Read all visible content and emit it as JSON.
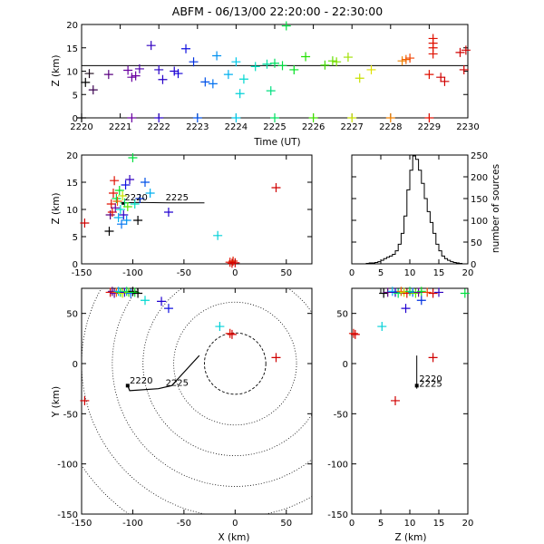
{
  "title": "ABFM - 06/13/00 22:20:00 - 22:30:00",
  "panels": {
    "time_height": {
      "xlabel": "Time (UT)",
      "ylabel": "Z (km)",
      "xlim": [
        2220,
        2230
      ],
      "ylim": [
        0,
        20
      ],
      "xticks": [
        "2220",
        "2221",
        "2222",
        "2223",
        "2224",
        "2225",
        "2226",
        "2227",
        "2228",
        "2229",
        "2230"
      ],
      "yticks": [
        "0",
        "5",
        "10",
        "15",
        "20"
      ],
      "mean_height": 11.2
    },
    "xz": {
      "ylabel": "Z (km)",
      "xlim": [
        -150,
        75
      ],
      "ylim": [
        0,
        20
      ],
      "xticks": [
        "-150",
        "-100",
        "-50",
        "0",
        "50"
      ],
      "yticks": [
        "0",
        "5",
        "10",
        "15",
        "20"
      ],
      "labels": [
        "2220",
        "2225"
      ]
    },
    "histogram": {
      "ylabel": "number of sources",
      "xlim": [
        0,
        20
      ],
      "ylim": [
        0,
        250
      ],
      "xticks": [
        "0",
        "5",
        "10",
        "15",
        "20"
      ],
      "yticks": [
        "0",
        "50",
        "100",
        "150",
        "200",
        "250"
      ]
    },
    "plan": {
      "xlabel": "X (km)",
      "ylabel": "Y (km)",
      "xlim": [
        -150,
        75
      ],
      "ylim": [
        -150,
        75
      ],
      "xticks": [
        "-150",
        "-100",
        "-50",
        "0",
        "50"
      ],
      "yticks": [
        "-150",
        "-100",
        "-50",
        "0",
        "50"
      ],
      "labels": [
        "2220",
        "2225"
      ]
    },
    "zy": {
      "xlabel": "Z (km)",
      "xlim": [
        0,
        20
      ],
      "ylim": [
        -150,
        75
      ],
      "xticks": [
        "0",
        "5",
        "10",
        "15",
        "20"
      ],
      "yticks": [
        "-150",
        "-100",
        "-50",
        "0",
        "50"
      ],
      "labels": [
        "2220",
        "2225"
      ]
    }
  },
  "chart_data": [
    {
      "type": "scatter",
      "name_key": "time_height",
      "points": [
        {
          "t": 2220.1,
          "z": 7.6,
          "c": "#000000"
        },
        {
          "t": 2220.2,
          "z": 9.5,
          "c": "#1a0a1a"
        },
        {
          "t": 2220.3,
          "z": 6.0,
          "c": "#3a0050"
        },
        {
          "t": 2220.7,
          "z": 9.3,
          "c": "#5a0080"
        },
        {
          "t": 2221.2,
          "z": 10.2,
          "c": "#6a00a0"
        },
        {
          "t": 2221.3,
          "z": 8.7,
          "c": "#6a00a0"
        },
        {
          "t": 2221.4,
          "z": 9.0,
          "c": "#6a00a0"
        },
        {
          "t": 2221.5,
          "z": 10.5,
          "c": "#5000b0"
        },
        {
          "t": 2221.8,
          "z": 15.5,
          "c": "#3000c0"
        },
        {
          "t": 2222.0,
          "z": 10.3,
          "c": "#2800c8"
        },
        {
          "t": 2222.1,
          "z": 8.2,
          "c": "#2800c8"
        },
        {
          "t": 2222.4,
          "z": 10.0,
          "c": "#2000d0"
        },
        {
          "t": 2222.5,
          "z": 9.5,
          "c": "#1000d8"
        },
        {
          "t": 2222.7,
          "z": 14.8,
          "c": "#1010e0"
        },
        {
          "t": 2222.9,
          "z": 12.0,
          "c": "#0030e0"
        },
        {
          "t": 2223.2,
          "z": 7.7,
          "c": "#0050e8"
        },
        {
          "t": 2223.4,
          "z": 7.3,
          "c": "#0070f0"
        },
        {
          "t": 2223.5,
          "z": 13.3,
          "c": "#0090f0"
        },
        {
          "t": 2223.8,
          "z": 9.3,
          "c": "#00b0f0"
        },
        {
          "t": 2224.0,
          "z": 12.0,
          "c": "#00c8e8"
        },
        {
          "t": 2224.1,
          "z": 5.2,
          "c": "#00d0d8"
        },
        {
          "t": 2224.2,
          "z": 8.3,
          "c": "#00d8d0"
        },
        {
          "t": 2224.5,
          "z": 11.0,
          "c": "#00e0c0"
        },
        {
          "t": 2224.8,
          "z": 11.5,
          "c": "#00e0a0"
        },
        {
          "t": 2224.9,
          "z": 5.8,
          "c": "#00e080"
        },
        {
          "t": 2225.0,
          "z": 11.7,
          "c": "#00e060"
        },
        {
          "t": 2225.2,
          "z": 11.2,
          "c": "#00e040"
        },
        {
          "t": 2225.3,
          "z": 19.7,
          "c": "#00e040"
        },
        {
          "t": 2225.5,
          "z": 10.3,
          "c": "#00e020"
        },
        {
          "t": 2225.8,
          "z": 13.1,
          "c": "#20e000"
        },
        {
          "t": 2226.3,
          "z": 11.3,
          "c": "#40e000"
        },
        {
          "t": 2226.5,
          "z": 12.2,
          "c": "#60e000"
        },
        {
          "t": 2226.6,
          "z": 12.0,
          "c": "#80e000"
        },
        {
          "t": 2226.9,
          "z": 13.0,
          "c": "#a0e000"
        },
        {
          "t": 2227.2,
          "z": 8.5,
          "c": "#c8e000"
        },
        {
          "t": 2227.5,
          "z": 10.3,
          "c": "#e0e000"
        },
        {
          "t": 2228.3,
          "z": 12.2,
          "c": "#f08000"
        },
        {
          "t": 2228.4,
          "z": 12.5,
          "c": "#f06000"
        },
        {
          "t": 2228.5,
          "z": 12.8,
          "c": "#f04000"
        },
        {
          "t": 2229.1,
          "z": 17.0,
          "c": "#e01000"
        },
        {
          "t": 2229.1,
          "z": 16.0,
          "c": "#e01000"
        },
        {
          "t": 2229.1,
          "z": 15.0,
          "c": "#e01000"
        },
        {
          "t": 2229.1,
          "z": 13.7,
          "c": "#e01000"
        },
        {
          "t": 2229.0,
          "z": 9.3,
          "c": "#e01000"
        },
        {
          "t": 2229.3,
          "z": 8.7,
          "c": "#d00000"
        },
        {
          "t": 2229.4,
          "z": 7.8,
          "c": "#d00000"
        },
        {
          "t": 2229.8,
          "z": 14.0,
          "c": "#d00000"
        },
        {
          "t": 2229.9,
          "z": 10.3,
          "c": "#d00000"
        },
        {
          "t": 2229.95,
          "z": 14.5,
          "c": "#d00000"
        },
        {
          "t": 2220.0,
          "z": 0,
          "c": "#000000"
        },
        {
          "t": 2221.3,
          "z": 0,
          "c": "#6a00a0"
        },
        {
          "t": 2222.0,
          "z": 0,
          "c": "#2800c8"
        },
        {
          "t": 2223.0,
          "z": 0,
          "c": "#0050e8"
        },
        {
          "t": 2224.0,
          "z": 0,
          "c": "#00c8e8"
        },
        {
          "t": 2225.0,
          "z": 0,
          "c": "#00e060"
        },
        {
          "t": 2226.0,
          "z": 0,
          "c": "#40e000"
        },
        {
          "t": 2227.0,
          "z": 0,
          "c": "#c8e000"
        },
        {
          "t": 2228.0,
          "z": 0,
          "c": "#f08000"
        },
        {
          "t": 2229.0,
          "z": 0,
          "c": "#e01000"
        }
      ]
    },
    {
      "type": "scatter",
      "name_key": "xz",
      "points": [
        {
          "x": -147,
          "z": 7.5,
          "c": "#d00000"
        },
        {
          "x": -123,
          "z": 6.0,
          "c": "#000000"
        },
        {
          "x": -122,
          "z": 9.0,
          "c": "#5a0080"
        },
        {
          "x": -121,
          "z": 11.0,
          "c": "#e01000"
        },
        {
          "x": -120,
          "z": 9.5,
          "c": "#e01000"
        },
        {
          "x": -119,
          "z": 13.0,
          "c": "#e01000"
        },
        {
          "x": -118,
          "z": 15.3,
          "c": "#e01000"
        },
        {
          "x": -117,
          "z": 10.3,
          "c": "#6a00a0"
        },
        {
          "x": -116,
          "z": 12.0,
          "c": "#00e040"
        },
        {
          "x": -115,
          "z": 11.5,
          "c": "#f06000"
        },
        {
          "x": -114,
          "z": 8.5,
          "c": "#00b0f0"
        },
        {
          "x": -113,
          "z": 13.5,
          "c": "#00e020"
        },
        {
          "x": -112,
          "z": 10.0,
          "c": "#00d8d0"
        },
        {
          "x": -111,
          "z": 7.3,
          "c": "#0070f0"
        },
        {
          "x": -110,
          "z": 12.5,
          "c": "#c8e000"
        },
        {
          "x": -109,
          "z": 9.0,
          "c": "#2800c8"
        },
        {
          "x": -108,
          "z": 11.2,
          "c": "#00e060"
        },
        {
          "x": -107,
          "z": 14.5,
          "c": "#1010e0"
        },
        {
          "x": -106,
          "z": 8.0,
          "c": "#0090f0"
        },
        {
          "x": -105,
          "z": 10.5,
          "c": "#60e000"
        },
        {
          "x": -103,
          "z": 15.5,
          "c": "#3000c0"
        },
        {
          "x": -100,
          "z": 19.5,
          "c": "#00e040"
        },
        {
          "x": -98,
          "z": 11.0,
          "c": "#00e0c0"
        },
        {
          "x": -95,
          "z": 8.0,
          "c": "#000000"
        },
        {
          "x": -93,
          "z": 12.0,
          "c": "#0030e0"
        },
        {
          "x": -88,
          "z": 15.0,
          "c": "#0050e8"
        },
        {
          "x": -83,
          "z": 13.0,
          "c": "#00b0f0"
        },
        {
          "x": -65,
          "z": 9.5,
          "c": "#2000d0"
        },
        {
          "x": -17,
          "z": 5.2,
          "c": "#00d0d8"
        },
        {
          "x": 40,
          "z": 14.0,
          "c": "#d00000"
        },
        {
          "x": -5,
          "z": 0.3,
          "c": "#e01000"
        },
        {
          "x": -3,
          "z": 0.1,
          "c": "#d00000"
        },
        {
          "x": -2,
          "z": 0.5,
          "c": "#e02000"
        },
        {
          "x": 0,
          "z": 0.2,
          "c": "#d00000"
        }
      ]
    },
    {
      "type": "bar",
      "name_key": "histogram",
      "bin_width": 0.5,
      "x_start": 0,
      "values": [
        0,
        0,
        0,
        0,
        0,
        1,
        2,
        2,
        3,
        5,
        8,
        12,
        15,
        18,
        22,
        30,
        45,
        70,
        110,
        170,
        215,
        248,
        240,
        215,
        185,
        150,
        120,
        95,
        70,
        45,
        30,
        18,
        12,
        8,
        5,
        3,
        2,
        1,
        0,
        0
      ]
    },
    {
      "type": "scatter",
      "name_key": "plan",
      "points": [
        {
          "x": -147,
          "y": -37,
          "c": "#d00000"
        },
        {
          "x": -122,
          "y": 71,
          "c": "#e01000"
        },
        {
          "x": -120,
          "y": 72,
          "c": "#5a0080"
        },
        {
          "x": -118,
          "y": 70,
          "c": "#6a00a0"
        },
        {
          "x": -116,
          "y": 71,
          "c": "#f06000"
        },
        {
          "x": -114,
          "y": 72,
          "c": "#00b0f0"
        },
        {
          "x": -112,
          "y": 71,
          "c": "#00e040"
        },
        {
          "x": -110,
          "y": 70,
          "c": "#c8e000"
        },
        {
          "x": -108,
          "y": 71,
          "c": "#2800c8"
        },
        {
          "x": -106,
          "y": 72,
          "c": "#00e060"
        },
        {
          "x": -104,
          "y": 71,
          "c": "#60e000"
        },
        {
          "x": -102,
          "y": 70,
          "c": "#0070f0"
        },
        {
          "x": -100,
          "y": 72,
          "c": "#000000"
        },
        {
          "x": -98,
          "y": 71,
          "c": "#00e020"
        },
        {
          "x": -95,
          "y": 70,
          "c": "#000000"
        },
        {
          "x": -88,
          "y": 63,
          "c": "#00d8d0"
        },
        {
          "x": -72,
          "y": 62,
          "c": "#2000d0"
        },
        {
          "x": -65,
          "y": 55,
          "c": "#1010e0"
        },
        {
          "x": -15,
          "y": 37,
          "c": "#00d0d8"
        },
        {
          "x": -5,
          "y": 30,
          "c": "#e01000"
        },
        {
          "x": -3,
          "y": 29,
          "c": "#d00000"
        },
        {
          "x": 40,
          "y": 6,
          "c": "#d00000"
        }
      ],
      "rings_km": [
        30,
        60,
        90,
        120,
        150,
        180
      ]
    },
    {
      "type": "scatter",
      "name_key": "zy",
      "points": [
        {
          "z": 5.5,
          "y": 70,
          "c": "#000000"
        },
        {
          "z": 6.2,
          "y": 71,
          "c": "#5a0080"
        },
        {
          "z": 7.0,
          "y": 72,
          "c": "#00b0f0"
        },
        {
          "z": 7.5,
          "y": 71,
          "c": "#2800c8"
        },
        {
          "z": 8.0,
          "y": 70,
          "c": "#00e060"
        },
        {
          "z": 8.5,
          "y": 72,
          "c": "#f06000"
        },
        {
          "z": 9.0,
          "y": 71,
          "c": "#c8e000"
        },
        {
          "z": 9.5,
          "y": 70,
          "c": "#e01000"
        },
        {
          "z": 10.0,
          "y": 72,
          "c": "#00e040"
        },
        {
          "z": 10.5,
          "y": 71,
          "c": "#0070f0"
        },
        {
          "z": 11.0,
          "y": 70,
          "c": "#60e000"
        },
        {
          "z": 11.5,
          "y": 71,
          "c": "#6a00a0"
        },
        {
          "z": 12.0,
          "y": 72,
          "c": "#00e020"
        },
        {
          "z": 13.0,
          "y": 71,
          "c": "#f04000"
        },
        {
          "z": 14.0,
          "y": 70,
          "c": "#d00000"
        },
        {
          "z": 15.0,
          "y": 71,
          "c": "#3000c0"
        },
        {
          "z": 19.5,
          "y": 70,
          "c": "#00e040"
        },
        {
          "z": 9.3,
          "y": 55,
          "c": "#2000d0"
        },
        {
          "z": 12.0,
          "y": 63,
          "c": "#0030e0"
        },
        {
          "z": 5.2,
          "y": 37,
          "c": "#00d0d8"
        },
        {
          "z": 0.3,
          "y": 30,
          "c": "#e01000"
        },
        {
          "z": 0.6,
          "y": 29,
          "c": "#d00000"
        },
        {
          "z": 14.0,
          "y": 6,
          "c": "#d00000"
        },
        {
          "z": 7.5,
          "y": -37,
          "c": "#d00000"
        }
      ]
    }
  ]
}
